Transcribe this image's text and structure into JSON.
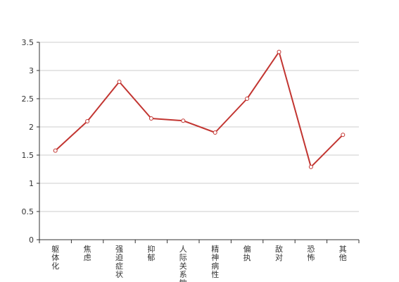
{
  "chart_data": {
    "type": "line",
    "categories": [
      "躯体化",
      "焦虑",
      "强迫症状",
      "抑郁",
      "人际关系敏感",
      "精神病性",
      "偏执",
      "敌对",
      "恐怖",
      "其他"
    ],
    "series": [
      {
        "values": [
          1.58,
          2.1,
          2.8,
          2.15,
          2.11,
          1.9,
          2.5,
          3.33,
          1.29,
          1.86
        ]
      }
    ],
    "ylim": [
      0,
      3.5
    ],
    "yticks": [
      0,
      0.5,
      1,
      1.5,
      2,
      2.5,
      3,
      3.5
    ],
    "ytick_labels": [
      "0",
      "0.5",
      "1",
      "1.5",
      "2",
      "2.5",
      "3",
      "3.5"
    ],
    "grid": true,
    "colors": {
      "line": "#c23531",
      "grid": "#cccccc",
      "axis": "#333333"
    }
  }
}
